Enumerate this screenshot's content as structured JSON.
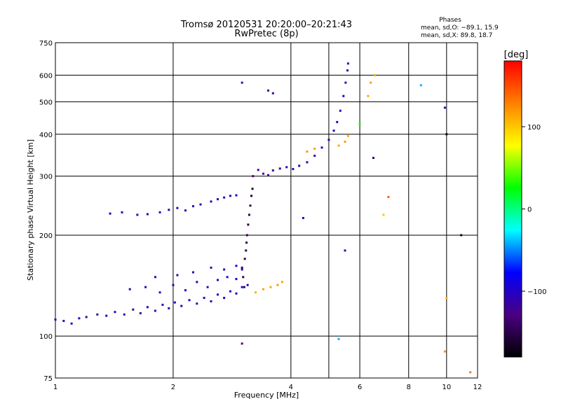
{
  "chart_data": {
    "type": "scatter",
    "title": "Tromsø 20120531 20:20:00–20:21:43",
    "subtitle": "RwPretec (8p)",
    "xlabel": "Frequency [MHz]",
    "ylabel": "Stationary phase Virtual Height [km]",
    "x_scale": "log",
    "y_scale": "log",
    "xlim": [
      1,
      12
    ],
    "ylim": [
      75,
      750
    ],
    "x_ticks": [
      1,
      2,
      4,
      6,
      8,
      10,
      12
    ],
    "x_tick_labels": [
      "1",
      "2",
      "4",
      "6",
      "8",
      "10",
      "12"
    ],
    "x_grid": [
      1,
      2,
      4,
      5,
      6,
      8,
      10
    ],
    "y_ticks": [
      75,
      100,
      200,
      300,
      400,
      500,
      600,
      750
    ],
    "y_tick_labels": [
      "75",
      "100",
      "200",
      "300",
      "400",
      "500",
      "600",
      "750"
    ],
    "grid": true,
    "stats": {
      "heading": "Phases",
      "line1": "mean, sd,O: −89.1, 15.9",
      "line2": "mean, sd,X:  89.8, 18.7"
    },
    "colorbar": {
      "label": "[deg]",
      "range": [
        -180,
        180
      ],
      "ticks": [
        100,
        0,
        -100
      ],
      "tick_labels": [
        "100",
        "0",
        "−100"
      ],
      "stops": [
        "#000000",
        "#4b0082",
        "#0000ff",
        "#00ffff",
        "#00ff00",
        "#ffff00",
        "#ff8000",
        "#ff0000"
      ]
    },
    "series": [
      {
        "points": [
          [
            1.0,
            112,
            -110
          ],
          [
            1.05,
            111,
            -112
          ],
          [
            1.1,
            109,
            -108
          ],
          [
            1.15,
            113,
            -105
          ],
          [
            1.2,
            114,
            -110
          ],
          [
            1.28,
            116,
            -115
          ],
          [
            1.35,
            115,
            -108
          ],
          [
            1.42,
            118,
            -106
          ],
          [
            1.5,
            116,
            -112
          ],
          [
            1.58,
            120,
            -110
          ],
          [
            1.65,
            117,
            -108
          ],
          [
            1.72,
            122,
            -104
          ],
          [
            1.8,
            119,
            -110
          ],
          [
            1.88,
            124,
            -106
          ],
          [
            1.95,
            121,
            -112
          ],
          [
            2.02,
            126,
            -108
          ],
          [
            2.1,
            123,
            -110
          ],
          [
            2.2,
            128,
            -104
          ],
          [
            2.3,
            125,
            -108
          ],
          [
            2.4,
            130,
            -106
          ],
          [
            2.5,
            127,
            -110
          ],
          [
            2.6,
            133,
            -104
          ],
          [
            2.7,
            130,
            -106
          ],
          [
            2.8,
            136,
            -102
          ],
          [
            2.9,
            134,
            -100
          ],
          [
            3.0,
            140,
            -98
          ],
          [
            3.1,
            142,
            -104
          ]
        ]
      },
      {
        "points": [
          [
            1.55,
            138,
            -108
          ],
          [
            1.7,
            140,
            -110
          ],
          [
            1.85,
            135,
            -112
          ],
          [
            2.0,
            142,
            -106
          ],
          [
            2.15,
            137,
            -104
          ],
          [
            2.3,
            145,
            -108
          ],
          [
            2.45,
            140,
            -110
          ],
          [
            2.6,
            147,
            -102
          ],
          [
            2.75,
            150,
            -100
          ],
          [
            2.9,
            148,
            -98
          ],
          [
            1.8,
            150,
            -112
          ],
          [
            2.05,
            152,
            -108
          ],
          [
            2.25,
            155,
            -110
          ],
          [
            2.5,
            160,
            -104
          ],
          [
            2.7,
            158,
            -106
          ],
          [
            2.9,
            162,
            -100
          ],
          [
            3.0,
            158,
            -96
          ]
        ]
      },
      {
        "points": [
          [
            1.38,
            232,
            -108
          ],
          [
            1.48,
            234,
            -106
          ],
          [
            1.62,
            230,
            -108
          ],
          [
            1.72,
            231,
            -104
          ],
          [
            1.85,
            234,
            -106
          ],
          [
            1.95,
            238,
            -108
          ],
          [
            2.05,
            241,
            -104
          ],
          [
            2.15,
            237,
            -110
          ],
          [
            2.25,
            244,
            -106
          ],
          [
            2.35,
            247,
            -104
          ],
          [
            2.5,
            252,
            -106
          ],
          [
            2.6,
            256,
            -102
          ],
          [
            2.7,
            259,
            -104
          ],
          [
            2.8,
            262,
            -106
          ],
          [
            2.9,
            263,
            -100
          ]
        ]
      },
      {
        "points": [
          [
            3.05,
            170,
            -150
          ],
          [
            3.07,
            180,
            -148
          ],
          [
            3.08,
            190,
            -152
          ],
          [
            3.09,
            200,
            -150
          ],
          [
            3.11,
            215,
            -155
          ],
          [
            3.13,
            230,
            -150
          ],
          [
            3.15,
            245,
            -148
          ],
          [
            3.17,
            262,
            -158
          ],
          [
            3.19,
            275,
            -160
          ],
          [
            3.0,
            160,
            -146
          ],
          [
            3.02,
            150,
            -150
          ],
          [
            3.04,
            140,
            -148
          ]
        ]
      },
      {
        "points": [
          [
            3.2,
            300,
            -135
          ],
          [
            3.3,
            313,
            -130
          ],
          [
            3.4,
            305,
            -128
          ],
          [
            3.5,
            302,
            -122
          ],
          [
            3.6,
            312,
            -118
          ],
          [
            3.75,
            316,
            -112
          ],
          [
            3.9,
            319,
            -108
          ],
          [
            4.05,
            315,
            -110
          ],
          [
            4.2,
            322,
            -106
          ],
          [
            4.4,
            330,
            -104
          ],
          [
            4.6,
            345,
            -108
          ],
          [
            4.8,
            365,
            -106
          ],
          [
            5.0,
            385,
            -104
          ],
          [
            5.15,
            410,
            -108
          ],
          [
            5.25,
            435,
            -104
          ],
          [
            5.35,
            470,
            -106
          ],
          [
            5.45,
            520,
            -104
          ],
          [
            5.52,
            570,
            -108
          ],
          [
            5.58,
            620,
            -106
          ],
          [
            5.6,
            650,
            -112
          ]
        ]
      },
      {
        "points": [
          [
            3.25,
            135,
            110
          ],
          [
            3.4,
            138,
            115
          ],
          [
            3.55,
            140,
            112
          ],
          [
            3.7,
            142,
            118
          ],
          [
            3.8,
            145,
            114
          ],
          [
            4.4,
            355,
            120
          ],
          [
            4.6,
            362,
            115
          ],
          [
            5.3,
            370,
            112
          ],
          [
            5.5,
            380,
            118
          ],
          [
            5.6,
            395,
            110
          ],
          [
            6.3,
            520,
            112
          ],
          [
            6.4,
            570,
            115
          ],
          [
            6.55,
            600,
            110
          ]
        ]
      },
      {
        "points": [
          [
            3.0,
            95,
            -130
          ],
          [
            3.0,
            570,
            -110
          ],
          [
            3.5,
            540,
            -120
          ],
          [
            3.6,
            530,
            -118
          ],
          [
            4.3,
            225,
            -110
          ],
          [
            5.5,
            180,
            -112
          ],
          [
            5.3,
            98,
            -40
          ],
          [
            6.0,
            430,
            30
          ],
          [
            6.5,
            340,
            -140
          ],
          [
            6.9,
            230,
            100
          ],
          [
            7.1,
            260,
            140
          ],
          [
            8.6,
            560,
            -40
          ],
          [
            9.9,
            480,
            -110
          ],
          [
            10.0,
            400,
            -170
          ],
          [
            10.0,
            130,
            110
          ],
          [
            10.9,
            200,
            -170
          ],
          [
            11.5,
            78,
            130
          ],
          [
            9.9,
            90,
            120
          ]
        ]
      }
    ]
  }
}
